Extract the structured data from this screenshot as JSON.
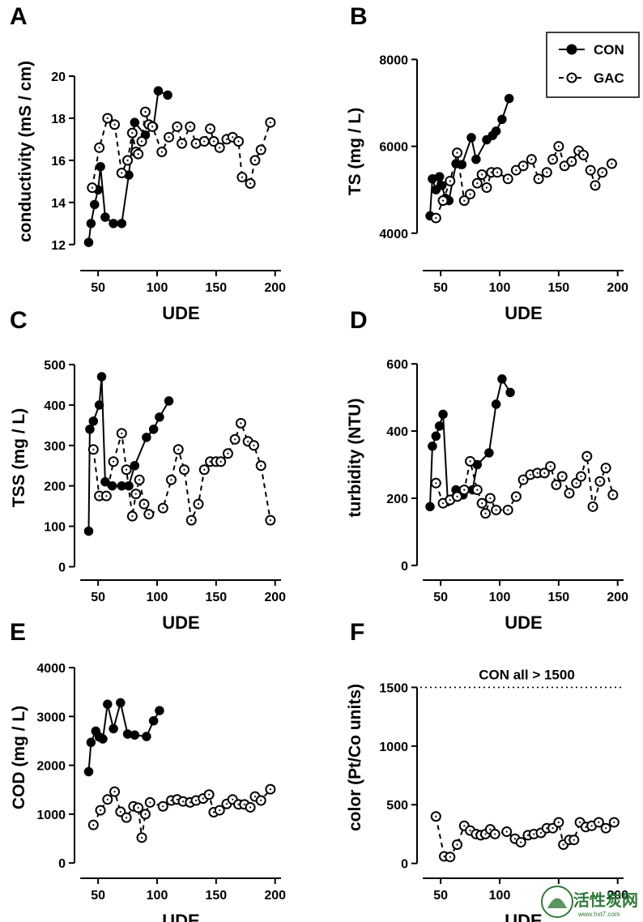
{
  "figure": {
    "legend": {
      "con": "CON",
      "gac": "GAC"
    },
    "watermark": {
      "title": "活性炭网",
      "url": "www.hxt7.com"
    }
  },
  "chart_data": [
    {
      "type": "line",
      "panel": "A",
      "ylabel": "conductivity (mS / cm)",
      "xlabel": "UDE",
      "xlim": [
        30,
        205
      ],
      "ylim": [
        11.3,
        21
      ],
      "xticks": [
        50,
        100,
        150,
        200
      ],
      "yticks": [
        12,
        14,
        16,
        18,
        20
      ],
      "series": [
        {
          "name": "CON",
          "marker": "filled",
          "line": "solid",
          "x": [
            42,
            44,
            47,
            50,
            52,
            56,
            63,
            70,
            76,
            81,
            90,
            97,
            101,
            109
          ],
          "y": [
            12.1,
            13.0,
            13.9,
            14.6,
            15.7,
            13.3,
            13.0,
            13.0,
            15.3,
            17.8,
            17.2,
            17.6,
            19.3,
            19.1
          ]
        },
        {
          "name": "GAC",
          "marker": "open",
          "line": "dashed",
          "x": [
            45,
            51,
            58,
            64,
            70,
            75,
            79,
            82,
            84,
            87,
            90,
            93,
            96,
            104,
            110,
            117,
            121,
            128,
            133,
            140,
            145,
            148,
            153,
            159,
            164,
            169,
            172,
            179,
            183,
            188,
            196
          ],
          "y": [
            14.7,
            16.6,
            18.0,
            17.7,
            15.4,
            16.0,
            17.3,
            16.4,
            16.3,
            16.9,
            18.3,
            17.7,
            17.6,
            16.4,
            17.1,
            17.6,
            16.8,
            17.6,
            16.8,
            16.9,
            17.5,
            16.9,
            16.6,
            17.0,
            17.1,
            16.9,
            15.2,
            14.9,
            16.0,
            16.5,
            17.8
          ]
        }
      ]
    },
    {
      "type": "line",
      "panel": "B",
      "ylabel": "TS (mg / L)",
      "xlabel": "UDE",
      "xlim": [
        30,
        205
      ],
      "ylim": [
        3400,
        8100
      ],
      "xticks": [
        50,
        100,
        150,
        200
      ],
      "yticks": [
        4000,
        6000,
        8000
      ],
      "series": [
        {
          "name": "CON",
          "marker": "filled",
          "line": "solid",
          "x": [
            41,
            43,
            46,
            49,
            51,
            54,
            57,
            63,
            68,
            76,
            80,
            89,
            94,
            97,
            102,
            108
          ],
          "y": [
            4400,
            5250,
            5000,
            5300,
            5100,
            4800,
            4750,
            5600,
            5580,
            6200,
            5700,
            6150,
            6250,
            6350,
            6620,
            7100
          ]
        },
        {
          "name": "GAC",
          "marker": "open",
          "line": "dashed",
          "x": [
            46,
            52,
            58,
            64,
            70,
            75,
            81,
            85,
            89,
            93,
            98,
            107,
            114,
            120,
            127,
            133,
            140,
            145,
            150,
            155,
            161,
            167,
            171,
            177,
            181,
            187,
            195
          ],
          "y": [
            4350,
            4750,
            5200,
            5850,
            4750,
            4900,
            5150,
            5350,
            5050,
            5400,
            5400,
            5250,
            5450,
            5550,
            5700,
            5250,
            5400,
            5700,
            6000,
            5550,
            5650,
            5900,
            5800,
            5450,
            5100,
            5400,
            5600
          ]
        }
      ]
    },
    {
      "type": "line",
      "panel": "C",
      "ylabel": "TSS (mg / L)",
      "xlabel": "UDE",
      "xlim": [
        30,
        205
      ],
      "ylim": [
        -5,
        510
      ],
      "xticks": [
        50,
        100,
        150,
        200
      ],
      "yticks": [
        0,
        100,
        200,
        300,
        400,
        500
      ],
      "series": [
        {
          "name": "CON",
          "marker": "filled",
          "line": "solid",
          "x": [
            42,
            43,
            46,
            51,
            53,
            56,
            62,
            70,
            76,
            81,
            91,
            97,
            102,
            110
          ],
          "y": [
            88,
            340,
            360,
            400,
            470,
            210,
            200,
            200,
            200,
            250,
            320,
            340,
            370,
            410
          ]
        },
        {
          "name": "GAC",
          "marker": "open",
          "line": "dashed",
          "x": [
            46,
            51,
            57,
            63,
            70,
            74,
            79,
            82,
            85,
            89,
            93,
            105,
            112,
            118,
            123,
            129,
            135,
            140,
            145,
            150,
            154,
            160,
            166,
            171,
            177,
            182,
            188,
            196
          ],
          "y": [
            290,
            175,
            175,
            260,
            330,
            240,
            125,
            180,
            215,
            155,
            130,
            145,
            215,
            290,
            240,
            115,
            155,
            240,
            260,
            260,
            260,
            280,
            315,
            355,
            310,
            300,
            250,
            115
          ]
        }
      ]
    },
    {
      "type": "line",
      "panel": "D",
      "ylabel": "turbidity (NTU)",
      "xlabel": "UDE",
      "xlim": [
        30,
        205
      ],
      "ylim": [
        -10,
        610
      ],
      "xticks": [
        50,
        100,
        150,
        200
      ],
      "yticks": [
        0,
        200,
        400,
        600
      ],
      "series": [
        {
          "name": "CON",
          "marker": "filled",
          "line": "solid",
          "x": [
            41,
            43,
            46,
            49,
            52,
            56,
            63,
            69,
            77,
            81,
            91,
            97,
            102,
            109
          ],
          "y": [
            175,
            355,
            385,
            415,
            450,
            190,
            225,
            210,
            225,
            300,
            335,
            480,
            555,
            515
          ]
        },
        {
          "name": "GAC",
          "marker": "open",
          "line": "dashed",
          "x": [
            46,
            52,
            58,
            64,
            70,
            75,
            81,
            85,
            88,
            92,
            97,
            107,
            114,
            120,
            126,
            132,
            138,
            143,
            148,
            153,
            159,
            165,
            169,
            174,
            179,
            185,
            190,
            196
          ],
          "y": [
            245,
            185,
            195,
            205,
            225,
            310,
            225,
            185,
            155,
            200,
            165,
            165,
            205,
            255,
            270,
            275,
            275,
            295,
            240,
            265,
            215,
            245,
            265,
            325,
            175,
            250,
            290,
            210
          ]
        }
      ]
    },
    {
      "type": "line",
      "panel": "E",
      "ylabel": "COD (mg / L)",
      "xlabel": "UDE",
      "xlim": [
        30,
        205
      ],
      "ylim": [
        -80,
        4100
      ],
      "xticks": [
        50,
        100,
        150,
        200
      ],
      "yticks": [
        0,
        1000,
        2000,
        3000,
        4000
      ],
      "series": [
        {
          "name": "CON",
          "marker": "filled",
          "line": "solid",
          "x": [
            42,
            44,
            48,
            51,
            54,
            58,
            63,
            69,
            75,
            81,
            91,
            97,
            102
          ],
          "y": [
            1870,
            2470,
            2700,
            2580,
            2540,
            3250,
            2750,
            3280,
            2640,
            2620,
            2590,
            2910,
            3120
          ]
        },
        {
          "name": "GAC",
          "marker": "open",
          "line": "dashed",
          "x": [
            46,
            52,
            58,
            64,
            69,
            74,
            80,
            84,
            87,
            90,
            94,
            105,
            112,
            117,
            122,
            128,
            133,
            139,
            144,
            148,
            153,
            159,
            164,
            169,
            174,
            179,
            183,
            188,
            196
          ],
          "y": [
            780,
            1080,
            1300,
            1460,
            1050,
            930,
            1160,
            1130,
            520,
            1000,
            1240,
            1160,
            1280,
            1300,
            1260,
            1240,
            1280,
            1320,
            1400,
            1040,
            1080,
            1210,
            1300,
            1200,
            1200,
            1140,
            1360,
            1280,
            1510
          ]
        }
      ]
    },
    {
      "type": "line",
      "panel": "F",
      "ylabel": "color (Pt/Co units)",
      "xlabel": "UDE",
      "xlim": [
        30,
        205
      ],
      "ylim": [
        -30,
        1710
      ],
      "xticks": [
        50,
        100,
        150,
        200
      ],
      "yticks": [
        0,
        500,
        1000,
        1500
      ],
      "reference_line": {
        "y": 1500,
        "label": "CON all > 1500"
      },
      "series": [
        {
          "name": "GAC",
          "marker": "open",
          "line": "dashed",
          "x": [
            46,
            53,
            58,
            64,
            70,
            75,
            80,
            84,
            88,
            92,
            96,
            106,
            113,
            118,
            124,
            129,
            135,
            140,
            145,
            150,
            154,
            159,
            163,
            168,
            173,
            178,
            184,
            190,
            197
          ],
          "y": [
            400,
            60,
            55,
            160,
            320,
            280,
            250,
            240,
            250,
            290,
            250,
            270,
            210,
            180,
            240,
            250,
            260,
            300,
            300,
            350,
            160,
            200,
            200,
            350,
            310,
            320,
            350,
            300,
            350
          ]
        }
      ]
    }
  ]
}
